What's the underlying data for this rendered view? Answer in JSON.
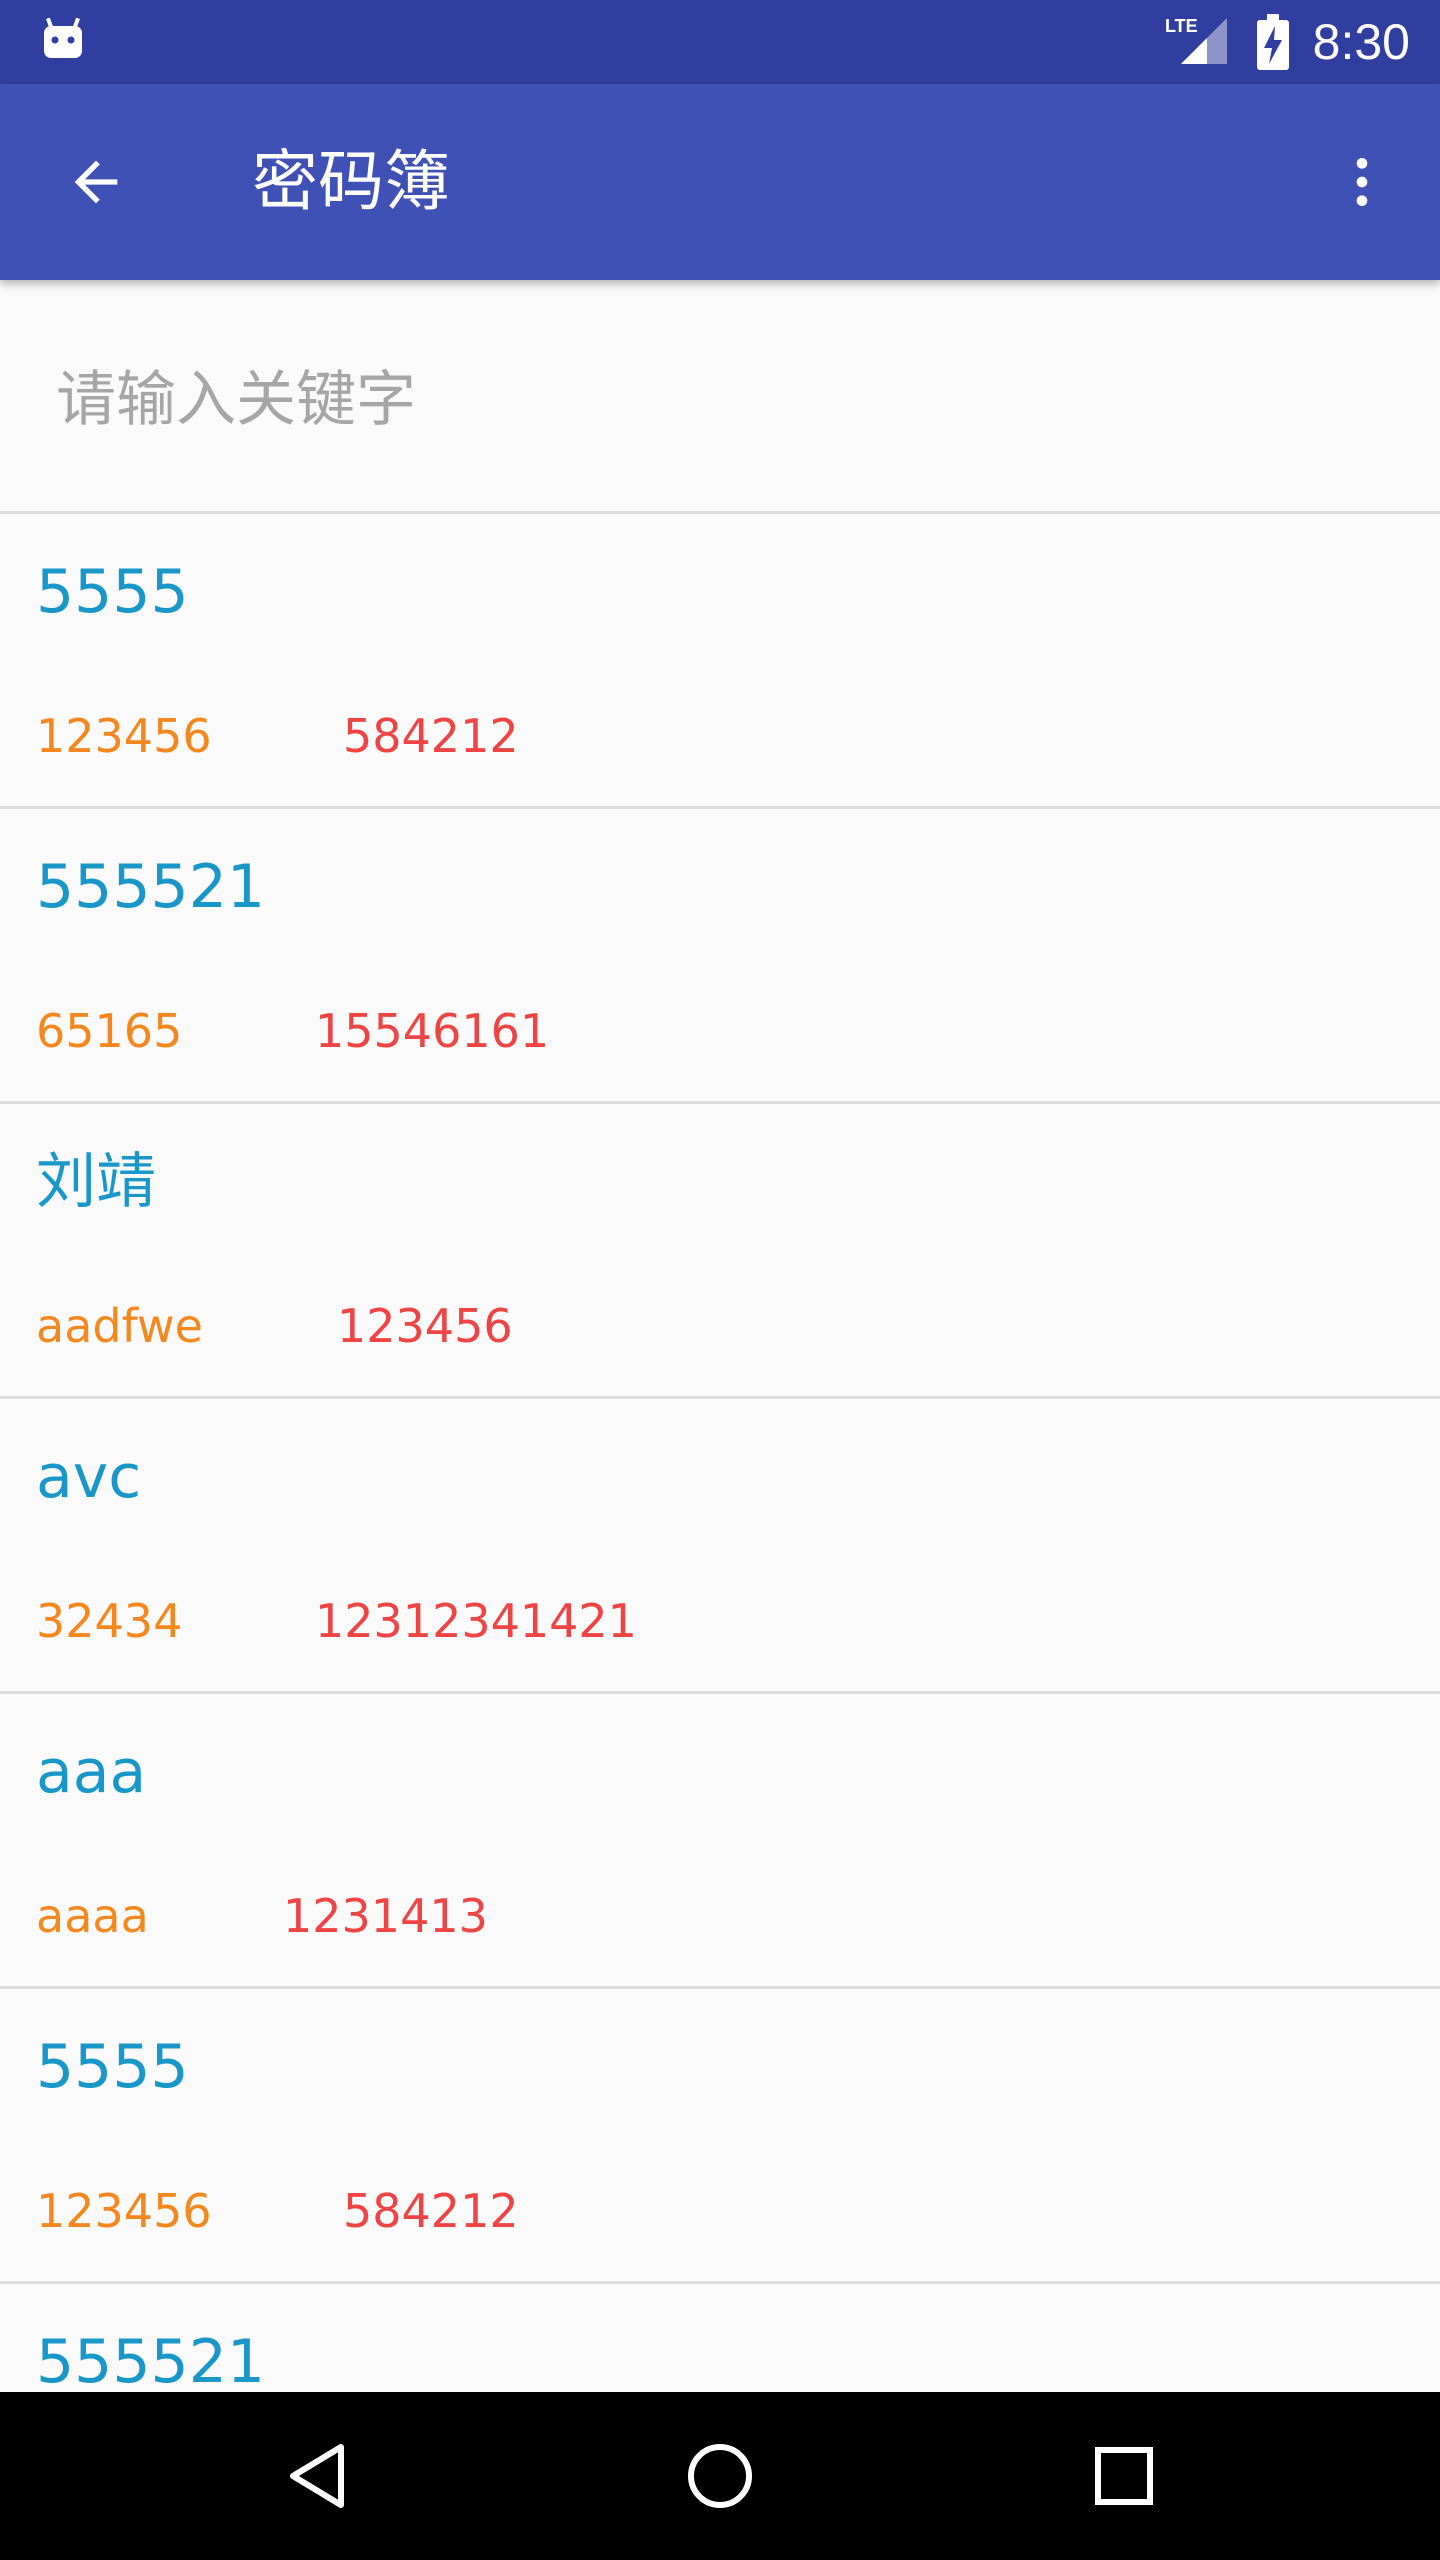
{
  "status_bar": {
    "time": "8:30",
    "network_label": "LTE",
    "icons": [
      "android-icon",
      "lte-signal-icon",
      "battery-charging-icon"
    ]
  },
  "app_bar": {
    "title": "密码簿",
    "back_icon": "arrow-back-icon",
    "overflow_icon": "more-vert-icon"
  },
  "search": {
    "placeholder": "请输入关键字",
    "value": ""
  },
  "list": {
    "items": [
      {
        "name": "5555",
        "account": "123456",
        "password": "584212"
      },
      {
        "name": "555521",
        "account": "65165",
        "password": "15546161"
      },
      {
        "name": "刘靖",
        "account": "aadfwe",
        "password": "123456"
      },
      {
        "name": "avc",
        "account": "32434",
        "password": "12312341421"
      },
      {
        "name": "aaa",
        "account": "aaaa",
        "password": "1231413"
      },
      {
        "name": "5555",
        "account": "123456",
        "password": "584212"
      },
      {
        "name": "555521",
        "account": "",
        "password": ""
      }
    ]
  },
  "colors": {
    "status_bar": "#303f9f",
    "app_bar": "#3f51b5",
    "name_text": "#1a97c9",
    "account_text": "#f5871f",
    "password_text": "#ef4444"
  },
  "nav_bar": {
    "icons": [
      "nav-back-icon",
      "nav-home-icon",
      "nav-recents-icon"
    ]
  }
}
